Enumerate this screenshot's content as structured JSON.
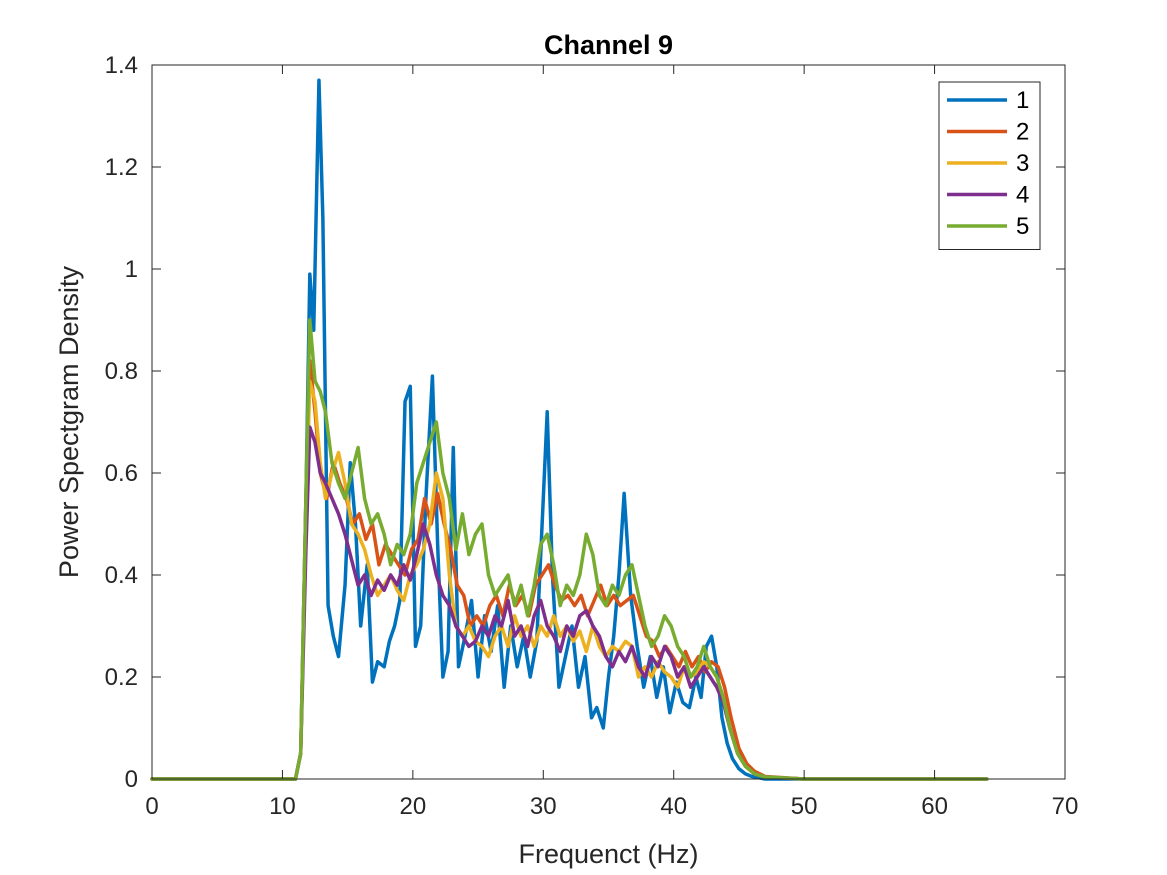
{
  "chart_data": {
    "type": "line",
    "title": "Channel 9",
    "xlabel": "Frequenct (Hz)",
    "ylabel": "Power Spectgram Density",
    "xlim": [
      0,
      70
    ],
    "ylim": [
      0,
      1.4
    ],
    "xticks": [
      "0",
      "10",
      "20",
      "30",
      "40",
      "50",
      "60",
      "70"
    ],
    "yticks": [
      "0",
      "0.2",
      "0.4",
      "0.6",
      "0.8",
      "1",
      "1.2",
      "1.4"
    ],
    "grid": false,
    "legend_position": "top-right",
    "series": [
      {
        "name": "1",
        "color": "#0072BD",
        "x": [
          0,
          10,
          11,
          11.4,
          11.8,
          12.1,
          12.4,
          12.8,
          13.1,
          13.5,
          13.9,
          14.3,
          14.8,
          15.2,
          15.6,
          16,
          16.5,
          16.9,
          17.3,
          17.8,
          18.2,
          18.6,
          19,
          19.4,
          19.8,
          20.2,
          20.6,
          21,
          21.5,
          21.9,
          22.3,
          22.7,
          23.1,
          23.5,
          24,
          24.5,
          25,
          25.5,
          26,
          26.5,
          27,
          27.5,
          28,
          28.5,
          29,
          29.5,
          30,
          30.3,
          30.7,
          31.2,
          31.7,
          32.2,
          32.7,
          33.2,
          33.7,
          34.1,
          34.6,
          35,
          35.4,
          35.8,
          36.2,
          36.7,
          37.2,
          37.7,
          38.2,
          38.7,
          39.2,
          39.7,
          40.2,
          40.7,
          41.2,
          41.7,
          42.1,
          42.5,
          42.9,
          43.3,
          43.7,
          44.1,
          44.5,
          45,
          45.5,
          46,
          47,
          50,
          55,
          60,
          64
        ],
        "y": [
          0,
          0,
          0,
          0.05,
          0.55,
          0.99,
          0.88,
          1.37,
          1.1,
          0.34,
          0.28,
          0.24,
          0.38,
          0.62,
          0.5,
          0.3,
          0.42,
          0.19,
          0.23,
          0.22,
          0.27,
          0.3,
          0.35,
          0.74,
          0.77,
          0.26,
          0.3,
          0.55,
          0.79,
          0.46,
          0.2,
          0.25,
          0.65,
          0.22,
          0.28,
          0.35,
          0.2,
          0.32,
          0.25,
          0.34,
          0.18,
          0.3,
          0.22,
          0.28,
          0.2,
          0.27,
          0.55,
          0.72,
          0.4,
          0.18,
          0.24,
          0.3,
          0.18,
          0.24,
          0.12,
          0.14,
          0.1,
          0.2,
          0.28,
          0.4,
          0.56,
          0.36,
          0.26,
          0.18,
          0.24,
          0.16,
          0.22,
          0.13,
          0.19,
          0.15,
          0.14,
          0.2,
          0.16,
          0.26,
          0.28,
          0.22,
          0.12,
          0.07,
          0.04,
          0.02,
          0.01,
          0.005,
          0,
          0,
          0,
          0,
          0
        ]
      },
      {
        "name": "2",
        "color": "#D95319",
        "x": [
          0,
          10,
          11,
          11.4,
          11.8,
          12.1,
          12.5,
          12.9,
          13.4,
          13.9,
          14.4,
          14.9,
          15.4,
          15.9,
          16.4,
          16.9,
          17.4,
          17.9,
          18.4,
          18.9,
          19.4,
          19.9,
          20.4,
          20.9,
          21.4,
          21.9,
          22.4,
          22.9,
          23.4,
          23.9,
          24.4,
          24.9,
          25.4,
          25.9,
          26.4,
          26.9,
          27.4,
          27.9,
          28.4,
          28.9,
          29.4,
          29.9,
          30.4,
          30.9,
          31.4,
          31.9,
          32.4,
          32.9,
          33.4,
          33.9,
          34.4,
          34.9,
          35.4,
          35.9,
          36.4,
          36.9,
          37.4,
          37.9,
          38.4,
          38.9,
          39.4,
          39.9,
          40.4,
          40.9,
          41.4,
          41.9,
          42.4,
          42.9,
          43.4,
          43.9,
          44.4,
          45,
          45.6,
          46.2,
          47,
          50,
          55,
          60,
          64
        ],
        "y": [
          0,
          0,
          0,
          0.05,
          0.55,
          0.82,
          0.72,
          0.6,
          0.55,
          0.62,
          0.58,
          0.55,
          0.5,
          0.52,
          0.47,
          0.5,
          0.42,
          0.46,
          0.44,
          0.42,
          0.4,
          0.45,
          0.47,
          0.55,
          0.5,
          0.56,
          0.5,
          0.45,
          0.38,
          0.36,
          0.3,
          0.32,
          0.3,
          0.34,
          0.36,
          0.32,
          0.38,
          0.34,
          0.36,
          0.32,
          0.38,
          0.4,
          0.42,
          0.38,
          0.35,
          0.36,
          0.34,
          0.36,
          0.32,
          0.35,
          0.38,
          0.34,
          0.36,
          0.34,
          0.35,
          0.36,
          0.32,
          0.28,
          0.27,
          0.24,
          0.26,
          0.24,
          0.22,
          0.25,
          0.22,
          0.24,
          0.21,
          0.23,
          0.22,
          0.18,
          0.12,
          0.06,
          0.03,
          0.015,
          0.005,
          0,
          0,
          0,
          0
        ]
      },
      {
        "name": "3",
        "color": "#EDB120",
        "x": [
          0,
          10,
          11,
          11.4,
          11.8,
          12.1,
          12.5,
          12.9,
          13.3,
          13.8,
          14.3,
          14.8,
          15.3,
          15.8,
          16.3,
          16.8,
          17.3,
          17.8,
          18.3,
          18.8,
          19.3,
          19.8,
          20.3,
          20.8,
          21.3,
          21.8,
          22.3,
          22.8,
          23.3,
          23.8,
          24.3,
          24.8,
          25.3,
          25.8,
          26.3,
          26.8,
          27.3,
          27.8,
          28.3,
          28.8,
          29.3,
          29.8,
          30.3,
          30.8,
          31.3,
          31.8,
          32.3,
          32.8,
          33.3,
          33.8,
          34.3,
          34.8,
          35.3,
          35.8,
          36.3,
          36.8,
          37.3,
          37.8,
          38.3,
          38.8,
          39.3,
          39.8,
          40.3,
          40.8,
          41.3,
          41.8,
          42.3,
          42.8,
          43.3,
          43.8,
          44.3,
          44.9,
          45.5,
          46.2,
          47,
          50,
          55,
          60,
          64
        ],
        "y": [
          0,
          0,
          0,
          0.05,
          0.5,
          0.78,
          0.74,
          0.62,
          0.55,
          0.6,
          0.64,
          0.58,
          0.5,
          0.48,
          0.45,
          0.4,
          0.36,
          0.38,
          0.4,
          0.37,
          0.35,
          0.4,
          0.42,
          0.45,
          0.5,
          0.6,
          0.55,
          0.4,
          0.3,
          0.28,
          0.3,
          0.27,
          0.26,
          0.24,
          0.28,
          0.3,
          0.26,
          0.32,
          0.28,
          0.3,
          0.26,
          0.3,
          0.28,
          0.32,
          0.28,
          0.3,
          0.27,
          0.29,
          0.25,
          0.3,
          0.26,
          0.24,
          0.26,
          0.25,
          0.27,
          0.26,
          0.2,
          0.22,
          0.2,
          0.23,
          0.21,
          0.2,
          0.18,
          0.22,
          0.2,
          0.21,
          0.23,
          0.22,
          0.2,
          0.16,
          0.1,
          0.05,
          0.025,
          0.01,
          0.004,
          0,
          0,
          0,
          0
        ]
      },
      {
        "name": "4",
        "color": "#7E2F8E",
        "x": [
          0,
          10,
          11,
          11.4,
          11.8,
          12.1,
          12.5,
          12.9,
          13.3,
          13.8,
          14.3,
          14.8,
          15.3,
          15.8,
          16.3,
          16.8,
          17.3,
          17.8,
          18.3,
          18.8,
          19.3,
          19.8,
          20.3,
          20.8,
          21.3,
          21.8,
          22.3,
          22.8,
          23.3,
          23.8,
          24.3,
          24.8,
          25.3,
          25.8,
          26.3,
          26.8,
          27.3,
          27.8,
          28.3,
          28.8,
          29.3,
          29.8,
          30.3,
          30.8,
          31.3,
          31.8,
          32.3,
          32.8,
          33.3,
          33.8,
          34.3,
          34.8,
          35.3,
          35.8,
          36.3,
          36.8,
          37.3,
          37.8,
          38.3,
          38.8,
          39.3,
          39.8,
          40.3,
          40.8,
          41.3,
          41.8,
          42.3,
          42.8,
          43.3,
          43.8,
          44.3,
          44.9,
          45.5,
          46.2,
          47,
          50,
          55,
          60,
          64
        ],
        "y": [
          0,
          0,
          0,
          0.05,
          0.45,
          0.69,
          0.66,
          0.6,
          0.58,
          0.55,
          0.52,
          0.48,
          0.43,
          0.38,
          0.4,
          0.36,
          0.39,
          0.37,
          0.4,
          0.38,
          0.42,
          0.39,
          0.44,
          0.5,
          0.46,
          0.4,
          0.36,
          0.34,
          0.3,
          0.28,
          0.26,
          0.27,
          0.3,
          0.28,
          0.32,
          0.3,
          0.35,
          0.28,
          0.3,
          0.26,
          0.32,
          0.35,
          0.3,
          0.28,
          0.25,
          0.3,
          0.28,
          0.32,
          0.33,
          0.3,
          0.28,
          0.24,
          0.22,
          0.25,
          0.23,
          0.26,
          0.22,
          0.2,
          0.24,
          0.22,
          0.26,
          0.24,
          0.2,
          0.22,
          0.18,
          0.2,
          0.22,
          0.2,
          0.18,
          0.15,
          0.1,
          0.05,
          0.025,
          0.01,
          0.004,
          0,
          0,
          0,
          0
        ]
      },
      {
        "name": "5",
        "color": "#77AC30",
        "x": [
          0,
          10,
          11,
          11.4,
          11.8,
          12.1,
          12.5,
          12.9,
          13.3,
          13.8,
          14.3,
          14.8,
          15.3,
          15.8,
          16.3,
          16.8,
          17.3,
          17.8,
          18.3,
          18.8,
          19.3,
          19.8,
          20.3,
          20.8,
          21.3,
          21.8,
          22.3,
          22.8,
          23.3,
          23.8,
          24.3,
          24.8,
          25.3,
          25.8,
          26.3,
          26.8,
          27.3,
          27.8,
          28.3,
          28.8,
          29.3,
          29.8,
          30.3,
          30.8,
          31.3,
          31.8,
          32.3,
          32.8,
          33.3,
          33.8,
          34.3,
          34.8,
          35.3,
          35.8,
          36.3,
          36.8,
          37.3,
          37.8,
          38.3,
          38.8,
          39.3,
          39.8,
          40.3,
          40.8,
          41.3,
          41.8,
          42.3,
          42.8,
          43.3,
          43.8,
          44.3,
          44.9,
          45.5,
          46.2,
          47,
          50,
          55,
          60,
          64
        ],
        "y": [
          0,
          0,
          0,
          0.05,
          0.55,
          0.9,
          0.78,
          0.76,
          0.72,
          0.62,
          0.58,
          0.55,
          0.6,
          0.65,
          0.55,
          0.5,
          0.52,
          0.48,
          0.42,
          0.46,
          0.44,
          0.48,
          0.58,
          0.62,
          0.66,
          0.7,
          0.6,
          0.55,
          0.45,
          0.52,
          0.44,
          0.48,
          0.5,
          0.4,
          0.36,
          0.38,
          0.4,
          0.34,
          0.38,
          0.32,
          0.38,
          0.46,
          0.48,
          0.42,
          0.34,
          0.38,
          0.36,
          0.4,
          0.48,
          0.44,
          0.36,
          0.34,
          0.38,
          0.36,
          0.4,
          0.42,
          0.36,
          0.3,
          0.26,
          0.28,
          0.32,
          0.3,
          0.26,
          0.24,
          0.2,
          0.22,
          0.26,
          0.22,
          0.2,
          0.16,
          0.1,
          0.05,
          0.025,
          0.01,
          0.004,
          0,
          0,
          0,
          0
        ]
      }
    ]
  }
}
